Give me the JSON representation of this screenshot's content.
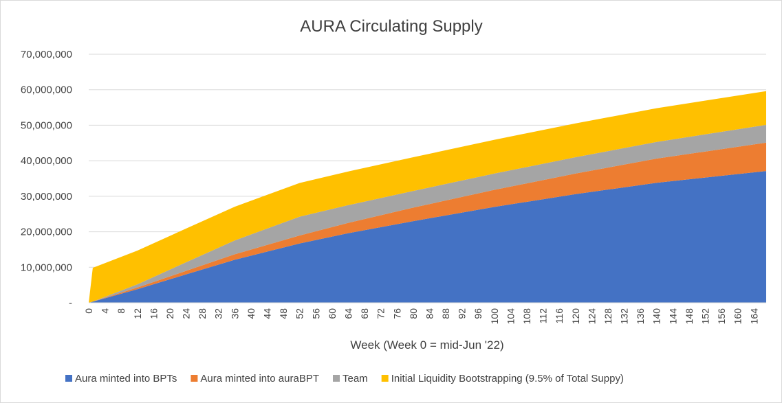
{
  "chart_data": {
    "type": "area",
    "stacked": true,
    "title": "AURA Circulating Supply",
    "xlabel": "Week (Week 0 = mid-Jun '22)",
    "ylabel": "",
    "ylim": [
      0,
      70000000
    ],
    "y_ticks": [
      0,
      10000000,
      20000000,
      30000000,
      40000000,
      50000000,
      60000000,
      70000000
    ],
    "y_tick_labels": [
      "-",
      "10,000,000",
      "20,000,000",
      "30,000,000",
      "40,000,000",
      "50,000,000",
      "60,000,000",
      "70,000,000"
    ],
    "x_range": [
      0,
      167
    ],
    "x_ticks": [
      0,
      4,
      8,
      12,
      16,
      20,
      24,
      28,
      32,
      36,
      40,
      44,
      48,
      52,
      56,
      60,
      64,
      68,
      72,
      76,
      80,
      84,
      88,
      92,
      96,
      100,
      104,
      108,
      112,
      116,
      120,
      124,
      128,
      132,
      136,
      140,
      144,
      148,
      152,
      156,
      160,
      164
    ],
    "grid": true,
    "legend_position": "bottom",
    "x": [
      0,
      1,
      12,
      24,
      36,
      52,
      64,
      80,
      100,
      120,
      140,
      167
    ],
    "series": [
      {
        "name": "Aura minted into BPTs",
        "color": "#4472C4",
        "values": [
          0,
          300000,
          3800000,
          8000000,
          12100000,
          16700000,
          19600000,
          23000000,
          27000000,
          30600000,
          33800000,
          37100000
        ]
      },
      {
        "name": "Aura minted into auraBPT",
        "color": "#ED7D31",
        "values": [
          0,
          50000,
          500000,
          1000000,
          1550000,
          2250000,
          2900000,
          3800000,
          4800000,
          5800000,
          6800000,
          8000000
        ]
      },
      {
        "name": "Team",
        "color": "#A5A5A5",
        "values": [
          0,
          0,
          900000,
          2400000,
          3900000,
          5300000,
          5000000,
          4700000,
          4600000,
          4600000,
          4700000,
          5000000
        ]
      },
      {
        "name": "Initial Liquidity Bootstrapping (9.5% of Total Suppy)",
        "color": "#FFC000",
        "values": [
          0,
          9500000,
          9500000,
          9500000,
          9500000,
          9500000,
          9500000,
          9500000,
          9500000,
          9500000,
          9500000,
          9500000
        ]
      }
    ]
  }
}
